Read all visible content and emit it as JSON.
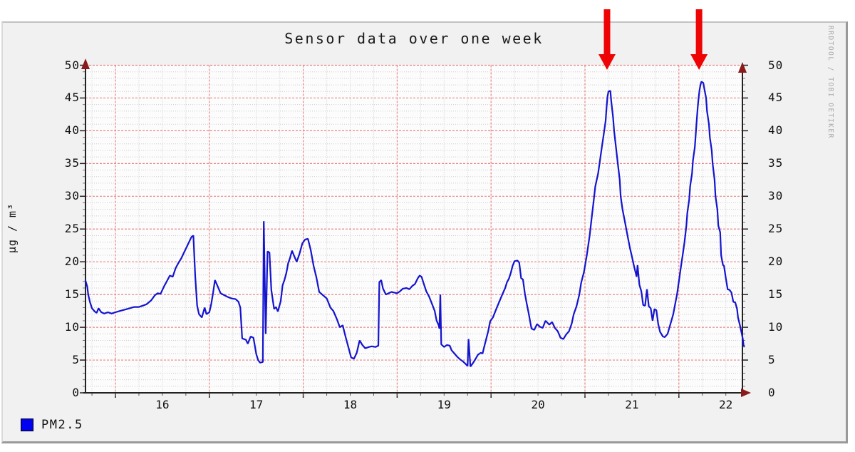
{
  "title": "Sensor data over one week",
  "y_axis_label": "µg / m³",
  "watermark": "RRDTOOL / TOBI OETIKER",
  "legend": {
    "items": [
      {
        "label": "PM2.5",
        "color": "#0202f2"
      }
    ]
  },
  "colors": {
    "page_bg": "#ffffff",
    "panel_bg": "#f1f1f1",
    "canvas_bg": "#fcfcfc",
    "grid_major": "#e88484",
    "grid_minor": "#cccccc",
    "axis": "#222222",
    "axis_arrow": "#8c1a1a",
    "line": "#1414cf",
    "annotation_arrow": "#ee0404",
    "text": "#111111",
    "watermark": "#aaaaaa"
  },
  "annotations": {
    "arrows": [
      {
        "t": 21.235
      },
      {
        "t": 22.215
      }
    ]
  },
  "chart_data": {
    "type": "line",
    "title": "Sensor data over one week",
    "xlabel": "",
    "ylabel": "µg / m³",
    "xlim": [
      15.681,
      22.703
    ],
    "ylim": [
      0,
      50
    ],
    "grid": "major red dashed every 5 units / 1 day, minor dotted every 1 unit / 6 hours",
    "legend_position": "bottom-left",
    "y_major_ticks": [
      0,
      5,
      10,
      15,
      20,
      25,
      30,
      35,
      40,
      45,
      50
    ],
    "x_day_gridlines": [
      16,
      17,
      18,
      19,
      20,
      21,
      22
    ],
    "x_tick_labels": [
      {
        "label": "16",
        "t": 16.5
      },
      {
        "label": "17",
        "t": 17.5
      },
      {
        "label": "18",
        "t": 18.5
      },
      {
        "label": "19",
        "t": 19.5
      },
      {
        "label": "20",
        "t": 20.5
      },
      {
        "label": "21",
        "t": 21.5
      },
      {
        "label": "22",
        "t": 22.5
      }
    ],
    "series": [
      {
        "name": "PM2.5",
        "color": "#1414cf",
        "points": [
          [
            15.68,
            17.2
          ],
          [
            15.7,
            16.2
          ],
          [
            15.71,
            15.0
          ],
          [
            15.73,
            13.8
          ],
          [
            15.75,
            12.9
          ],
          [
            15.78,
            12.4
          ],
          [
            15.8,
            12.2
          ],
          [
            15.82,
            12.9
          ],
          [
            15.85,
            12.3
          ],
          [
            15.88,
            12.1
          ],
          [
            15.92,
            12.3
          ],
          [
            15.96,
            12.1
          ],
          [
            16.0,
            12.3
          ],
          [
            16.05,
            12.5
          ],
          [
            16.1,
            12.7
          ],
          [
            16.15,
            12.9
          ],
          [
            16.2,
            13.1
          ],
          [
            16.25,
            13.1
          ],
          [
            16.29,
            13.3
          ],
          [
            16.33,
            13.5
          ],
          [
            16.38,
            14.1
          ],
          [
            16.42,
            14.9
          ],
          [
            16.45,
            15.2
          ],
          [
            16.48,
            15.1
          ],
          [
            16.52,
            16.3
          ],
          [
            16.55,
            17.1
          ],
          [
            16.58,
            17.9
          ],
          [
            16.61,
            17.7
          ],
          [
            16.64,
            19.0
          ],
          [
            16.67,
            19.8
          ],
          [
            16.7,
            20.5
          ],
          [
            16.73,
            21.4
          ],
          [
            16.76,
            22.3
          ],
          [
            16.79,
            23.2
          ],
          [
            16.81,
            23.8
          ],
          [
            16.83,
            24.0
          ],
          [
            16.85,
            17.8
          ],
          [
            16.87,
            13.3
          ],
          [
            16.89,
            12.0
          ],
          [
            16.92,
            11.5
          ],
          [
            16.95,
            13.0
          ],
          [
            16.97,
            12.0
          ],
          [
            17.0,
            12.3
          ],
          [
            17.02,
            13.5
          ],
          [
            17.04,
            15.3
          ],
          [
            17.06,
            17.2
          ],
          [
            17.09,
            16.2
          ],
          [
            17.12,
            15.2
          ],
          [
            17.16,
            14.9
          ],
          [
            17.2,
            14.6
          ],
          [
            17.24,
            14.4
          ],
          [
            17.28,
            14.3
          ],
          [
            17.31,
            13.9
          ],
          [
            17.33,
            13.0
          ],
          [
            17.35,
            8.3
          ],
          [
            17.39,
            8.1
          ],
          [
            17.41,
            7.5
          ],
          [
            17.44,
            8.6
          ],
          [
            17.47,
            8.4
          ],
          [
            17.5,
            5.9
          ],
          [
            17.52,
            5.0
          ],
          [
            17.54,
            4.6
          ],
          [
            17.57,
            4.7
          ],
          [
            17.58,
            26.2
          ],
          [
            17.6,
            9.0
          ],
          [
            17.62,
            21.6
          ],
          [
            17.64,
            21.4
          ],
          [
            17.66,
            15.7
          ],
          [
            17.69,
            12.8
          ],
          [
            17.71,
            13.1
          ],
          [
            17.73,
            12.4
          ],
          [
            17.76,
            14.0
          ],
          [
            17.78,
            16.4
          ],
          [
            17.8,
            17.2
          ],
          [
            17.82,
            18.3
          ],
          [
            17.84,
            19.8
          ],
          [
            17.86,
            20.6
          ],
          [
            17.88,
            21.7
          ],
          [
            17.9,
            21.0
          ],
          [
            17.93,
            20.0
          ],
          [
            17.96,
            21.2
          ],
          [
            17.99,
            22.8
          ],
          [
            18.02,
            23.4
          ],
          [
            18.05,
            23.5
          ],
          [
            18.08,
            21.8
          ],
          [
            18.11,
            19.4
          ],
          [
            18.14,
            17.6
          ],
          [
            18.17,
            15.4
          ],
          [
            18.21,
            14.9
          ],
          [
            18.25,
            14.4
          ],
          [
            18.29,
            13.0
          ],
          [
            18.32,
            12.5
          ],
          [
            18.36,
            11.2
          ],
          [
            18.39,
            10.0
          ],
          [
            18.42,
            10.3
          ],
          [
            18.45,
            8.6
          ],
          [
            18.48,
            7.0
          ],
          [
            18.51,
            5.4
          ],
          [
            18.54,
            5.2
          ],
          [
            18.57,
            6.1
          ],
          [
            18.6,
            8.0
          ],
          [
            18.63,
            7.3
          ],
          [
            18.66,
            6.8
          ],
          [
            18.7,
            7.0
          ],
          [
            18.73,
            7.1
          ],
          [
            18.77,
            7.0
          ],
          [
            18.8,
            7.2
          ],
          [
            18.81,
            16.9
          ],
          [
            18.83,
            17.2
          ],
          [
            18.85,
            15.9
          ],
          [
            18.88,
            15.0
          ],
          [
            18.91,
            15.2
          ],
          [
            18.94,
            15.4
          ],
          [
            18.97,
            15.3
          ],
          [
            19.0,
            15.2
          ],
          [
            19.03,
            15.5
          ],
          [
            19.06,
            15.9
          ],
          [
            19.1,
            16.0
          ],
          [
            19.13,
            15.8
          ],
          [
            19.16,
            16.3
          ],
          [
            19.19,
            16.6
          ],
          [
            19.22,
            17.5
          ],
          [
            19.24,
            17.9
          ],
          [
            19.26,
            17.7
          ],
          [
            19.28,
            16.8
          ],
          [
            19.31,
            15.5
          ],
          [
            19.34,
            14.7
          ],
          [
            19.37,
            13.6
          ],
          [
            19.4,
            12.5
          ],
          [
            19.42,
            11.0
          ],
          [
            19.44,
            10.4
          ],
          [
            19.45,
            9.8
          ],
          [
            19.46,
            15.0
          ],
          [
            19.47,
            7.4
          ],
          [
            19.5,
            7.0
          ],
          [
            19.53,
            7.3
          ],
          [
            19.56,
            7.2
          ],
          [
            19.58,
            6.5
          ],
          [
            19.61,
            6.0
          ],
          [
            19.64,
            5.5
          ],
          [
            19.67,
            5.1
          ],
          [
            19.7,
            4.8
          ],
          [
            19.73,
            4.4
          ],
          [
            19.75,
            4.1
          ],
          [
            19.76,
            8.2
          ],
          [
            19.78,
            4.0
          ],
          [
            19.81,
            4.6
          ],
          [
            19.84,
            5.3
          ],
          [
            19.86,
            5.8
          ],
          [
            19.89,
            6.1
          ],
          [
            19.91,
            6.0
          ],
          [
            19.93,
            7.2
          ],
          [
            19.95,
            8.3
          ],
          [
            19.97,
            9.4
          ],
          [
            19.99,
            10.9
          ],
          [
            20.02,
            11.5
          ],
          [
            20.05,
            12.6
          ],
          [
            20.07,
            13.3
          ],
          [
            20.09,
            14.0
          ],
          [
            20.12,
            15.0
          ],
          [
            20.15,
            16.0
          ],
          [
            20.17,
            16.9
          ],
          [
            20.19,
            17.4
          ],
          [
            20.21,
            18.3
          ],
          [
            20.23,
            19.4
          ],
          [
            20.25,
            20.1
          ],
          [
            20.28,
            20.2
          ],
          [
            20.3,
            19.9
          ],
          [
            20.32,
            17.5
          ],
          [
            20.34,
            17.3
          ],
          [
            20.36,
            15.2
          ],
          [
            20.38,
            13.6
          ],
          [
            20.4,
            12.2
          ],
          [
            20.43,
            9.8
          ],
          [
            20.46,
            9.6
          ],
          [
            20.49,
            10.5
          ],
          [
            20.52,
            10.1
          ],
          [
            20.55,
            9.9
          ],
          [
            20.58,
            11.0
          ],
          [
            20.62,
            10.4
          ],
          [
            20.65,
            10.8
          ],
          [
            20.68,
            9.9
          ],
          [
            20.71,
            9.4
          ],
          [
            20.74,
            8.4
          ],
          [
            20.77,
            8.2
          ],
          [
            20.8,
            8.9
          ],
          [
            20.83,
            9.4
          ],
          [
            20.86,
            10.6
          ],
          [
            20.88,
            12.0
          ],
          [
            20.91,
            13.2
          ],
          [
            20.94,
            15.0
          ],
          [
            20.96,
            16.8
          ],
          [
            20.99,
            18.5
          ],
          [
            21.02,
            21.0
          ],
          [
            21.05,
            24.0
          ],
          [
            21.07,
            26.5
          ],
          [
            21.09,
            29.0
          ],
          [
            21.11,
            31.5
          ],
          [
            21.14,
            33.5
          ],
          [
            21.16,
            35.5
          ],
          [
            21.18,
            37.5
          ],
          [
            21.2,
            39.5
          ],
          [
            21.22,
            41.5
          ],
          [
            21.23,
            43.5
          ],
          [
            21.24,
            45.2
          ],
          [
            21.25,
            46.0
          ],
          [
            21.27,
            46.1
          ],
          [
            21.28,
            44.5
          ],
          [
            21.3,
            42.0
          ],
          [
            21.31,
            40.0
          ],
          [
            21.33,
            37.5
          ],
          [
            21.35,
            35.0
          ],
          [
            21.37,
            32.5
          ],
          [
            21.38,
            30.0
          ],
          [
            21.4,
            28.0
          ],
          [
            21.42,
            26.5
          ],
          [
            21.44,
            25.0
          ],
          [
            21.46,
            23.5
          ],
          [
            21.48,
            22.0
          ],
          [
            21.5,
            20.8
          ],
          [
            21.52,
            19.5
          ],
          [
            21.54,
            18.3
          ],
          [
            21.55,
            17.7
          ],
          [
            21.56,
            19.5
          ],
          [
            21.58,
            16.5
          ],
          [
            21.6,
            15.5
          ],
          [
            21.62,
            13.4
          ],
          [
            21.64,
            13.3
          ],
          [
            21.66,
            15.8
          ],
          [
            21.68,
            13.2
          ],
          [
            21.7,
            12.9
          ],
          [
            21.72,
            11.0
          ],
          [
            21.74,
            12.8
          ],
          [
            21.76,
            12.6
          ],
          [
            21.78,
            10.5
          ],
          [
            21.8,
            9.3
          ],
          [
            21.83,
            8.6
          ],
          [
            21.85,
            8.5
          ],
          [
            21.88,
            9.0
          ],
          [
            21.9,
            10.0
          ],
          [
            21.92,
            11.0
          ],
          [
            21.94,
            12.0
          ],
          [
            21.96,
            13.5
          ],
          [
            21.98,
            15.0
          ],
          [
            22.0,
            17.0
          ],
          [
            22.02,
            19.0
          ],
          [
            22.04,
            21.0
          ],
          [
            22.06,
            23.0
          ],
          [
            22.08,
            25.5
          ],
          [
            22.09,
            27.5
          ],
          [
            22.11,
            29.5
          ],
          [
            22.12,
            31.5
          ],
          [
            22.14,
            33.5
          ],
          [
            22.15,
            35.5
          ],
          [
            22.17,
            37.5
          ],
          [
            22.18,
            39.5
          ],
          [
            22.19,
            41.5
          ],
          [
            22.2,
            43.5
          ],
          [
            22.21,
            45.0
          ],
          [
            22.22,
            46.2
          ],
          [
            22.23,
            47.0
          ],
          [
            22.24,
            47.5
          ],
          [
            22.26,
            47.3
          ],
          [
            22.27,
            46.5
          ],
          [
            22.29,
            45.0
          ],
          [
            22.3,
            43.0
          ],
          [
            22.32,
            41.0
          ],
          [
            22.33,
            39.0
          ],
          [
            22.35,
            37.0
          ],
          [
            22.36,
            35.0
          ],
          [
            22.38,
            32.5
          ],
          [
            22.39,
            30.0
          ],
          [
            22.41,
            28.0
          ],
          [
            22.42,
            25.5
          ],
          [
            22.44,
            24.5
          ],
          [
            22.45,
            21.0
          ],
          [
            22.47,
            19.5
          ],
          [
            22.48,
            19.4
          ],
          [
            22.5,
            17.5
          ],
          [
            22.52,
            15.8
          ],
          [
            22.54,
            15.7
          ],
          [
            22.56,
            15.3
          ],
          [
            22.58,
            13.9
          ],
          [
            22.6,
            13.8
          ],
          [
            22.62,
            12.8
          ],
          [
            22.63,
            11.5
          ],
          [
            22.65,
            10.3
          ],
          [
            22.67,
            9.0
          ],
          [
            22.68,
            8.3
          ],
          [
            22.69,
            7.2
          ],
          [
            22.7,
            7.1
          ]
        ]
      }
    ]
  }
}
